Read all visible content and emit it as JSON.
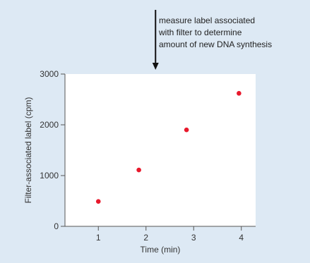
{
  "chart_data": {
    "type": "scatter",
    "title": "",
    "xlabel": "Time (min)",
    "ylabel": "Filter-associated label (cpm)",
    "xlim": [
      0.3,
      4.3
    ],
    "ylim": [
      0,
      3000
    ],
    "xticks": [
      1,
      2,
      3,
      4
    ],
    "yticks": [
      0,
      1000,
      2000,
      3000
    ],
    "x_tick_labels": [
      "1",
      "2",
      "3",
      "4"
    ],
    "y_tick_labels": [
      "0",
      "1000",
      "2000",
      "3000"
    ],
    "grid": false,
    "legend": "none",
    "series": [
      {
        "color": "#e8192c",
        "points": [
          {
            "x": 1.0,
            "y": 490
          },
          {
            "x": 1.85,
            "y": 1110
          },
          {
            "x": 2.85,
            "y": 1900
          },
          {
            "x": 3.95,
            "y": 2620
          }
        ]
      }
    ],
    "annotation": {
      "lines": [
        "measure label associated",
        "with filter to determine",
        "amount of new DNA synthesis"
      ],
      "arrow_x": 2.2
    }
  },
  "colors": {
    "background": "#dde9f4",
    "plot_area": "#ffffff",
    "axis": "#555555",
    "point": "#e8192c",
    "arrow": "#111111"
  }
}
